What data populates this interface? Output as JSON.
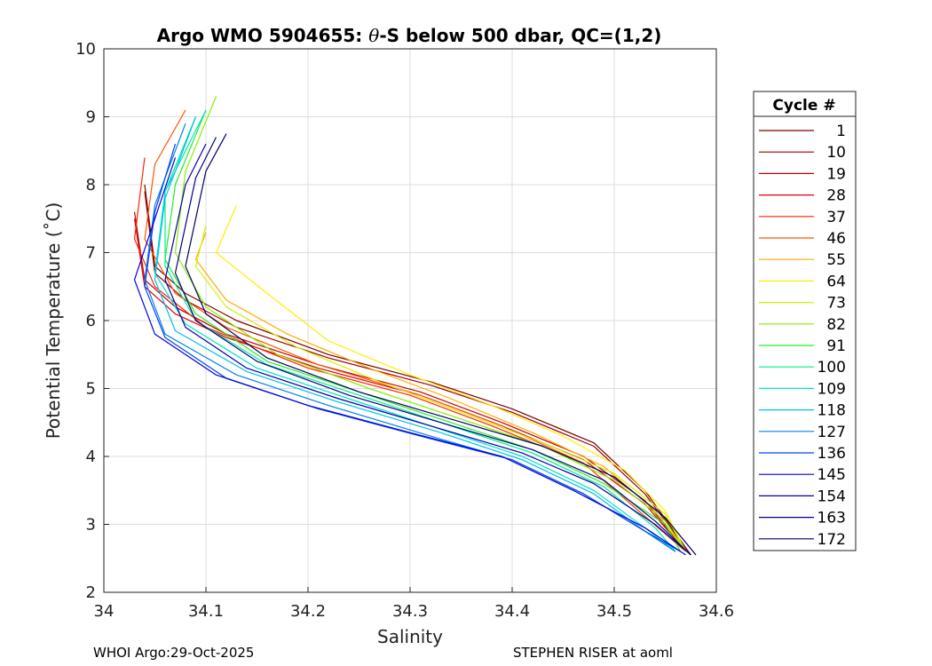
{
  "chart_data": {
    "type": "line",
    "title_prefix": "Argo WMO 5904655: ",
    "title_symbol": "θ",
    "title_suffix": "-S below 500 dbar,  QC=(1,2)",
    "xlabel": "Salinity",
    "ylabel": "Potential Temperature (˚C)",
    "xlim": [
      34,
      34.6
    ],
    "ylim": [
      2,
      10
    ],
    "xticks": [
      34,
      34.1,
      34.2,
      34.3,
      34.4,
      34.5,
      34.6
    ],
    "xtick_labels": [
      "34",
      "34.1",
      "34.2",
      "34.3",
      "34.4",
      "34.5",
      "34.6"
    ],
    "yticks": [
      2,
      3,
      4,
      5,
      6,
      7,
      8,
      9,
      10
    ],
    "ytick_labels": [
      "2",
      "3",
      "4",
      "5",
      "6",
      "7",
      "8",
      "9",
      "10"
    ],
    "grid": true,
    "legend_title": "Cycle #",
    "legend_position": "right",
    "series": [
      {
        "name": "1",
        "color": "#7a0000",
        "salinity": [
          34.04,
          34.05,
          34.08,
          34.13,
          34.22,
          34.32,
          34.4,
          34.48,
          34.53,
          34.575
        ],
        "theta": [
          8.0,
          6.8,
          6.4,
          6.0,
          5.5,
          5.1,
          4.7,
          4.2,
          3.5,
          2.55
        ]
      },
      {
        "name": "10",
        "color": "#9c0000",
        "salinity": [
          34.04,
          34.05,
          34.08,
          34.13,
          34.22,
          34.32,
          34.4,
          34.48,
          34.53,
          34.575
        ],
        "theta": [
          7.9,
          6.7,
          6.3,
          5.9,
          5.45,
          5.05,
          4.65,
          4.15,
          3.45,
          2.55
        ]
      },
      {
        "name": "19",
        "color": "#c00000",
        "salinity": [
          34.03,
          34.04,
          34.07,
          34.12,
          34.21,
          34.31,
          34.39,
          34.47,
          34.53,
          34.57
        ],
        "theta": [
          7.6,
          6.6,
          6.2,
          5.8,
          5.35,
          4.95,
          4.5,
          4.0,
          3.35,
          2.6
        ]
      },
      {
        "name": "28",
        "color": "#e00000",
        "salinity": [
          34.03,
          34.04,
          34.07,
          34.12,
          34.21,
          34.31,
          34.39,
          34.47,
          34.53,
          34.57
        ],
        "theta": [
          7.5,
          6.5,
          6.1,
          5.75,
          5.3,
          4.9,
          4.45,
          3.95,
          3.3,
          2.6
        ]
      },
      {
        "name": "37",
        "color": "#ff2200",
        "salinity": [
          34.04,
          34.03,
          34.05,
          34.1,
          34.2,
          34.3,
          34.38,
          34.47,
          34.52,
          34.57
        ],
        "theta": [
          8.4,
          7.2,
          6.5,
          5.9,
          5.3,
          4.9,
          4.45,
          3.9,
          3.25,
          2.6
        ]
      },
      {
        "name": "46",
        "color": "#ff5500",
        "salinity": [
          34.08,
          34.05,
          34.04,
          34.07,
          34.12,
          34.21,
          34.31,
          34.39,
          34.47,
          34.52,
          34.57
        ],
        "theta": [
          9.1,
          8.3,
          7.2,
          6.4,
          5.9,
          5.35,
          4.9,
          4.45,
          3.9,
          3.25,
          2.6
        ]
      },
      {
        "name": "55",
        "color": "#ffaa00",
        "salinity": [
          34.1,
          34.09,
          34.12,
          34.18,
          34.26,
          34.34,
          34.42,
          34.49,
          34.54,
          34.57
        ],
        "theta": [
          7.3,
          6.9,
          6.3,
          5.8,
          5.3,
          4.85,
          4.35,
          3.85,
          3.2,
          2.6
        ]
      },
      {
        "name": "64",
        "color": "#ffee00",
        "salinity": [
          34.13,
          34.11,
          34.16,
          34.22,
          34.3,
          34.38,
          34.45,
          34.51,
          34.55,
          34.57
        ],
        "theta": [
          7.7,
          7.0,
          6.4,
          5.7,
          5.2,
          4.75,
          4.3,
          3.8,
          3.2,
          2.6
        ]
      },
      {
        "name": "73",
        "color": "#d4f000",
        "salinity": [
          34.1,
          34.09,
          34.12,
          34.19,
          34.27,
          34.35,
          34.43,
          34.5,
          34.55,
          34.57
        ],
        "theta": [
          7.4,
          6.8,
          6.2,
          5.6,
          5.1,
          4.65,
          4.2,
          3.75,
          3.15,
          2.6
        ]
      },
      {
        "name": "82",
        "color": "#88ee00",
        "salinity": [
          34.11,
          34.08,
          34.07,
          34.1,
          34.17,
          34.26,
          34.35,
          34.43,
          34.5,
          34.55,
          34.57
        ],
        "theta": [
          9.3,
          8.2,
          7.0,
          6.2,
          5.5,
          5.0,
          4.55,
          4.15,
          3.65,
          3.05,
          2.6
        ]
      },
      {
        "name": "91",
        "color": "#22ee22",
        "salinity": [
          34.1,
          34.07,
          34.06,
          34.09,
          34.16,
          34.25,
          34.34,
          34.42,
          34.49,
          34.55,
          34.565
        ],
        "theta": [
          9.1,
          8.0,
          6.9,
          6.1,
          5.4,
          4.95,
          4.5,
          4.1,
          3.6,
          3.0,
          2.6
        ]
      },
      {
        "name": "100",
        "color": "#00ee88",
        "salinity": [
          34.09,
          34.06,
          34.06,
          34.09,
          34.16,
          34.25,
          34.34,
          34.42,
          34.49,
          34.54,
          34.56
        ],
        "theta": [
          9.0,
          7.9,
          6.8,
          6.0,
          5.35,
          4.9,
          4.45,
          4.05,
          3.55,
          2.95,
          2.6
        ]
      },
      {
        "name": "109",
        "color": "#00e0c8",
        "salinity": [
          34.1,
          34.06,
          34.05,
          34.08,
          34.15,
          34.24,
          34.33,
          34.41,
          34.48,
          34.53,
          34.56
        ],
        "theta": [
          9.1,
          7.9,
          6.7,
          5.95,
          5.3,
          4.85,
          4.4,
          4.0,
          3.5,
          2.95,
          2.6
        ]
      },
      {
        "name": "118",
        "color": "#00c0ee",
        "salinity": [
          34.09,
          34.06,
          34.05,
          34.07,
          34.14,
          34.23,
          34.33,
          34.41,
          34.48,
          34.53,
          34.56
        ],
        "theta": [
          9.0,
          7.8,
          6.6,
          5.85,
          5.25,
          4.8,
          4.35,
          3.95,
          3.45,
          2.9,
          2.6
        ]
      },
      {
        "name": "127",
        "color": "#0080ee",
        "salinity": [
          34.08,
          34.05,
          34.04,
          34.06,
          34.13,
          34.22,
          34.32,
          34.4,
          34.47,
          34.53,
          34.56
        ],
        "theta": [
          8.9,
          7.7,
          6.6,
          5.8,
          5.2,
          4.75,
          4.3,
          3.95,
          3.45,
          2.9,
          2.6
        ]
      },
      {
        "name": "136",
        "color": "#0044ee",
        "salinity": [
          34.07,
          34.05,
          34.04,
          34.06,
          34.12,
          34.21,
          34.31,
          34.4,
          34.47,
          34.53,
          34.565
        ],
        "theta": [
          8.6,
          7.6,
          6.5,
          5.75,
          5.15,
          4.7,
          4.3,
          3.95,
          3.45,
          2.9,
          2.6
        ]
      },
      {
        "name": "145",
        "color": "#0000dd",
        "salinity": [
          34.07,
          34.05,
          34.03,
          34.05,
          34.11,
          34.2,
          34.3,
          34.39,
          34.46,
          34.53,
          34.57
        ],
        "theta": [
          8.4,
          7.5,
          6.6,
          5.8,
          5.2,
          4.75,
          4.35,
          4.0,
          3.5,
          2.95,
          2.55
        ]
      },
      {
        "name": "154",
        "color": "#0000b0",
        "salinity": [
          34.1,
          34.08,
          34.07,
          34.06,
          34.08,
          34.14,
          34.23,
          34.32,
          34.41,
          34.48,
          34.54,
          34.575
        ],
        "theta": [
          8.6,
          8.0,
          7.3,
          6.6,
          5.9,
          5.3,
          4.85,
          4.45,
          4.05,
          3.6,
          3.0,
          2.55
        ]
      },
      {
        "name": "163",
        "color": "#000088",
        "salinity": [
          34.11,
          34.09,
          34.08,
          34.07,
          34.09,
          34.15,
          34.24,
          34.33,
          34.42,
          34.49,
          34.54,
          34.575
        ],
        "theta": [
          8.7,
          8.1,
          7.4,
          6.7,
          6.0,
          5.4,
          4.9,
          4.5,
          4.1,
          3.65,
          3.05,
          2.55
        ]
      },
      {
        "name": "172",
        "color": "#000066",
        "salinity": [
          34.12,
          34.1,
          34.09,
          34.08,
          34.1,
          34.16,
          34.25,
          34.34,
          34.43,
          34.5,
          34.55,
          34.58
        ],
        "theta": [
          8.75,
          8.2,
          7.5,
          6.8,
          6.1,
          5.45,
          4.95,
          4.55,
          4.15,
          3.7,
          3.1,
          2.55
        ]
      }
    ]
  },
  "footer": {
    "left": "WHOI Argo:29-Oct-2025",
    "right": "STEPHEN RISER at aoml"
  }
}
